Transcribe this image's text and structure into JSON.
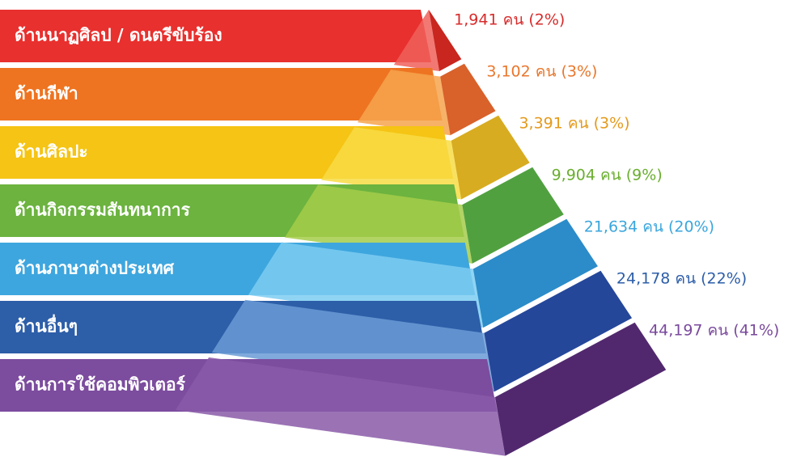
{
  "layers": [
    {
      "label": "ด้านนาฏศิลป / ดนตรีขับร้อง",
      "value": "1,941 คน (2%)"
    },
    {
      "label": "ด้านกีฬา",
      "value": "3,102 คน (3%)"
    },
    {
      "label": "ด้านศิลปะ",
      "value": "3,391 คน (3%)"
    },
    {
      "label": "ด้านกิจกรรมสันทนาการ",
      "value": "9,904 คน (9%)"
    },
    {
      "label": "ด้านภาษาต่างประเทศ",
      "value": "21,634 คน (20%)"
    },
    {
      "label": "ด้านอื่นๆ",
      "value": "24,178 คน (22%)"
    },
    {
      "label": "ด้านการใช้คอมพิวเตอร์",
      "value": "44,197 คน (41%)"
    }
  ]
}
